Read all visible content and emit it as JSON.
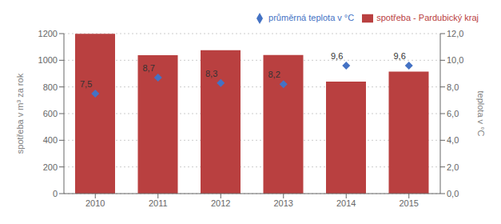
{
  "chart_data": {
    "type": "bar",
    "categories": [
      "2010",
      "2011",
      "2012",
      "2013",
      "2014",
      "2015"
    ],
    "series": [
      {
        "name": "spotřeba - Pardubický kraj",
        "type": "bar",
        "color": "#B94040",
        "values": [
          1198,
          1038,
          1075,
          1040,
          840,
          915
        ]
      },
      {
        "name": "průměrná teplota v °C",
        "type": "scatter",
        "marker": "diamond",
        "color": "#4472C4",
        "axis": "y2",
        "values": [
          7.5,
          8.7,
          8.3,
          8.2,
          9.6,
          9.6
        ],
        "value_labels": [
          "7,5",
          "8,7",
          "8,3",
          "8,2",
          "9,6",
          "9,6"
        ]
      }
    ],
    "ylabel": "spotřeba v m³ za rok",
    "y2label": "teplota v °C",
    "ylim": [
      0,
      1200
    ],
    "yticks": [
      0,
      200,
      400,
      600,
      800,
      1000,
      1200
    ],
    "y2lim": [
      0.0,
      12.0
    ],
    "y2ticks": [
      {
        "value": 0.0,
        "label": "0,0"
      },
      {
        "value": 2.0,
        "label": "2,0"
      },
      {
        "value": 4.0,
        "label": "4,0"
      },
      {
        "value": 6.0,
        "label": "6,0"
      },
      {
        "value": 8.0,
        "label": "8,0"
      },
      {
        "value": 10.0,
        "label": "10,0"
      },
      {
        "value": 12.0,
        "label": "12,0"
      }
    ],
    "grid": true,
    "legend": "upper right",
    "data_labels": true
  }
}
